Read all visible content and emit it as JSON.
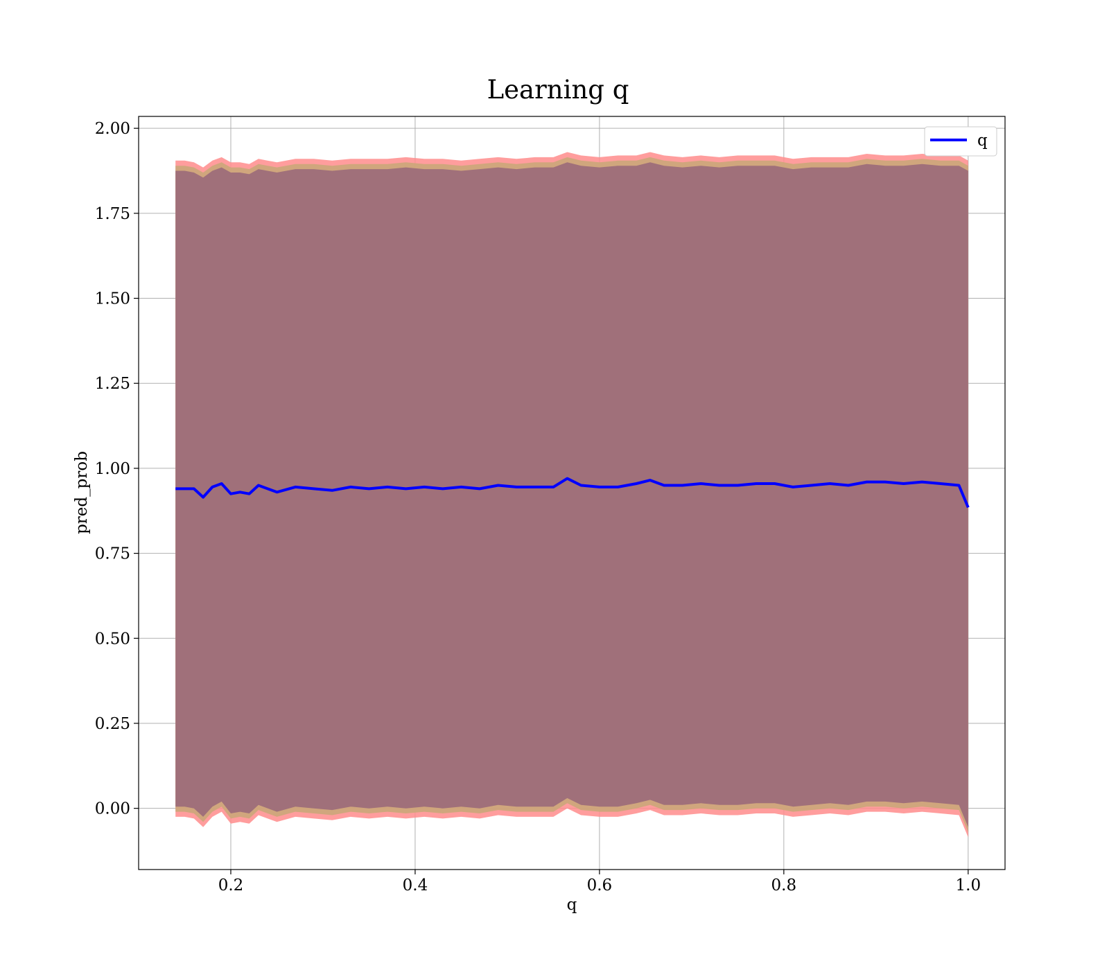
{
  "chart_data": {
    "type": "line",
    "title": "Learning q",
    "xlabel": "q",
    "ylabel": "pred_prob",
    "xlim": [
      0.1,
      1.04
    ],
    "ylim": [
      -0.18,
      2.035
    ],
    "grid": true,
    "legend_position": "top-right",
    "x_ticks": [
      0.2,
      0.4,
      0.6,
      0.8,
      1.0
    ],
    "x_tick_labels": [
      "0.2",
      "0.4",
      "0.6",
      "0.8",
      "1.0"
    ],
    "y_ticks": [
      0.0,
      0.25,
      0.5,
      0.75,
      1.0,
      1.25,
      1.5,
      1.75,
      2.0
    ],
    "y_tick_labels": [
      "0.00",
      "0.25",
      "0.50",
      "0.75",
      "1.00",
      "1.25",
      "1.50",
      "1.75",
      "2.00"
    ],
    "colors": {
      "line": "#0000ff",
      "band_outer": "#ff8c8c",
      "band_middle": "#c8a878",
      "band_inner": "#a0707a"
    },
    "series": [
      {
        "name": "q",
        "color": "#0000ff",
        "x": [
          0.14,
          0.15,
          0.16,
          0.17,
          0.18,
          0.19,
          0.2,
          0.21,
          0.22,
          0.23,
          0.25,
          0.27,
          0.29,
          0.31,
          0.33,
          0.35,
          0.37,
          0.39,
          0.41,
          0.43,
          0.45,
          0.47,
          0.49,
          0.51,
          0.53,
          0.55,
          0.565,
          0.58,
          0.6,
          0.62,
          0.64,
          0.655,
          0.67,
          0.69,
          0.71,
          0.73,
          0.75,
          0.77,
          0.79,
          0.81,
          0.83,
          0.85,
          0.87,
          0.89,
          0.91,
          0.93,
          0.95,
          0.97,
          0.99,
          1.0
        ],
        "y": [
          0.94,
          0.94,
          0.94,
          0.915,
          0.945,
          0.955,
          0.925,
          0.93,
          0.925,
          0.95,
          0.93,
          0.945,
          0.94,
          0.935,
          0.945,
          0.94,
          0.945,
          0.94,
          0.945,
          0.94,
          0.945,
          0.94,
          0.95,
          0.945,
          0.945,
          0.945,
          0.97,
          0.95,
          0.945,
          0.945,
          0.955,
          0.965,
          0.95,
          0.95,
          0.955,
          0.95,
          0.95,
          0.955,
          0.955,
          0.945,
          0.95,
          0.955,
          0.95,
          0.96,
          0.96,
          0.955,
          0.96,
          0.955,
          0.95,
          0.885
        ],
        "upper": [
          1.875,
          1.875,
          1.87,
          1.855,
          1.875,
          1.885,
          1.87,
          1.87,
          1.865,
          1.88,
          1.87,
          1.88,
          1.88,
          1.875,
          1.88,
          1.88,
          1.88,
          1.885,
          1.88,
          1.88,
          1.875,
          1.88,
          1.885,
          1.88,
          1.885,
          1.885,
          1.9,
          1.89,
          1.885,
          1.89,
          1.89,
          1.9,
          1.89,
          1.885,
          1.89,
          1.885,
          1.89,
          1.89,
          1.89,
          1.88,
          1.885,
          1.885,
          1.885,
          1.895,
          1.89,
          1.89,
          1.895,
          1.89,
          1.89,
          1.875
        ],
        "lower": [
          0.005,
          0.005,
          0.0,
          -0.025,
          0.005,
          0.02,
          -0.015,
          -0.01,
          -0.015,
          0.01,
          -0.01,
          0.005,
          0.0,
          -0.005,
          0.005,
          0.0,
          0.005,
          0.0,
          0.005,
          0.0,
          0.005,
          0.0,
          0.01,
          0.005,
          0.005,
          0.005,
          0.03,
          0.01,
          0.005,
          0.005,
          0.015,
          0.025,
          0.01,
          0.01,
          0.015,
          0.01,
          0.01,
          0.015,
          0.015,
          0.005,
          0.01,
          0.015,
          0.01,
          0.02,
          0.02,
          0.015,
          0.02,
          0.015,
          0.01,
          -0.055
        ]
      }
    ]
  }
}
